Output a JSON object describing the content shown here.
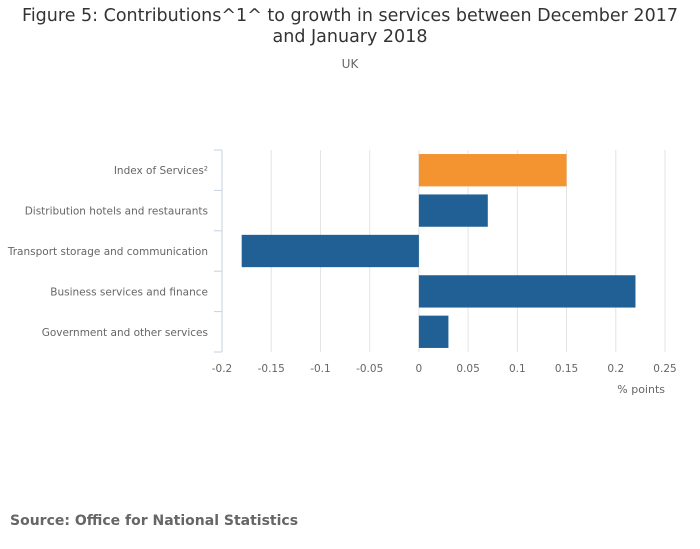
{
  "header": {
    "title_line1": "Figure 5: Contributions^1^ to growth in services between December 2017",
    "title_line2": "and January 2018",
    "subtitle": "UK"
  },
  "footer": {
    "source": "Source: Office for National Statistics"
  },
  "chart_data": {
    "type": "bar",
    "orientation": "horizontal",
    "title": "Figure 5: Contributions^1^ to growth in services between December 2017 and January 2018",
    "subtitle": "UK",
    "categories": [
      "Index of Services²",
      "Distribution hotels and restaurants",
      "Transport storage and communication",
      "Business services and finance",
      "Government and other services"
    ],
    "values": [
      0.15,
      0.07,
      -0.18,
      0.22,
      0.03
    ],
    "colors": [
      "#f39431",
      "#206095",
      "#206095",
      "#206095",
      "#206095"
    ],
    "xlabel": "% points",
    "ylabel": "",
    "xlim": [
      -0.2,
      0.25
    ],
    "xticks": [
      "-0.2",
      "-0.15",
      "-0.1",
      "-0.05",
      "0",
      "0.05",
      "0.1",
      "0.15",
      "0.2",
      "0.25"
    ],
    "grid": true,
    "legend": "none"
  }
}
